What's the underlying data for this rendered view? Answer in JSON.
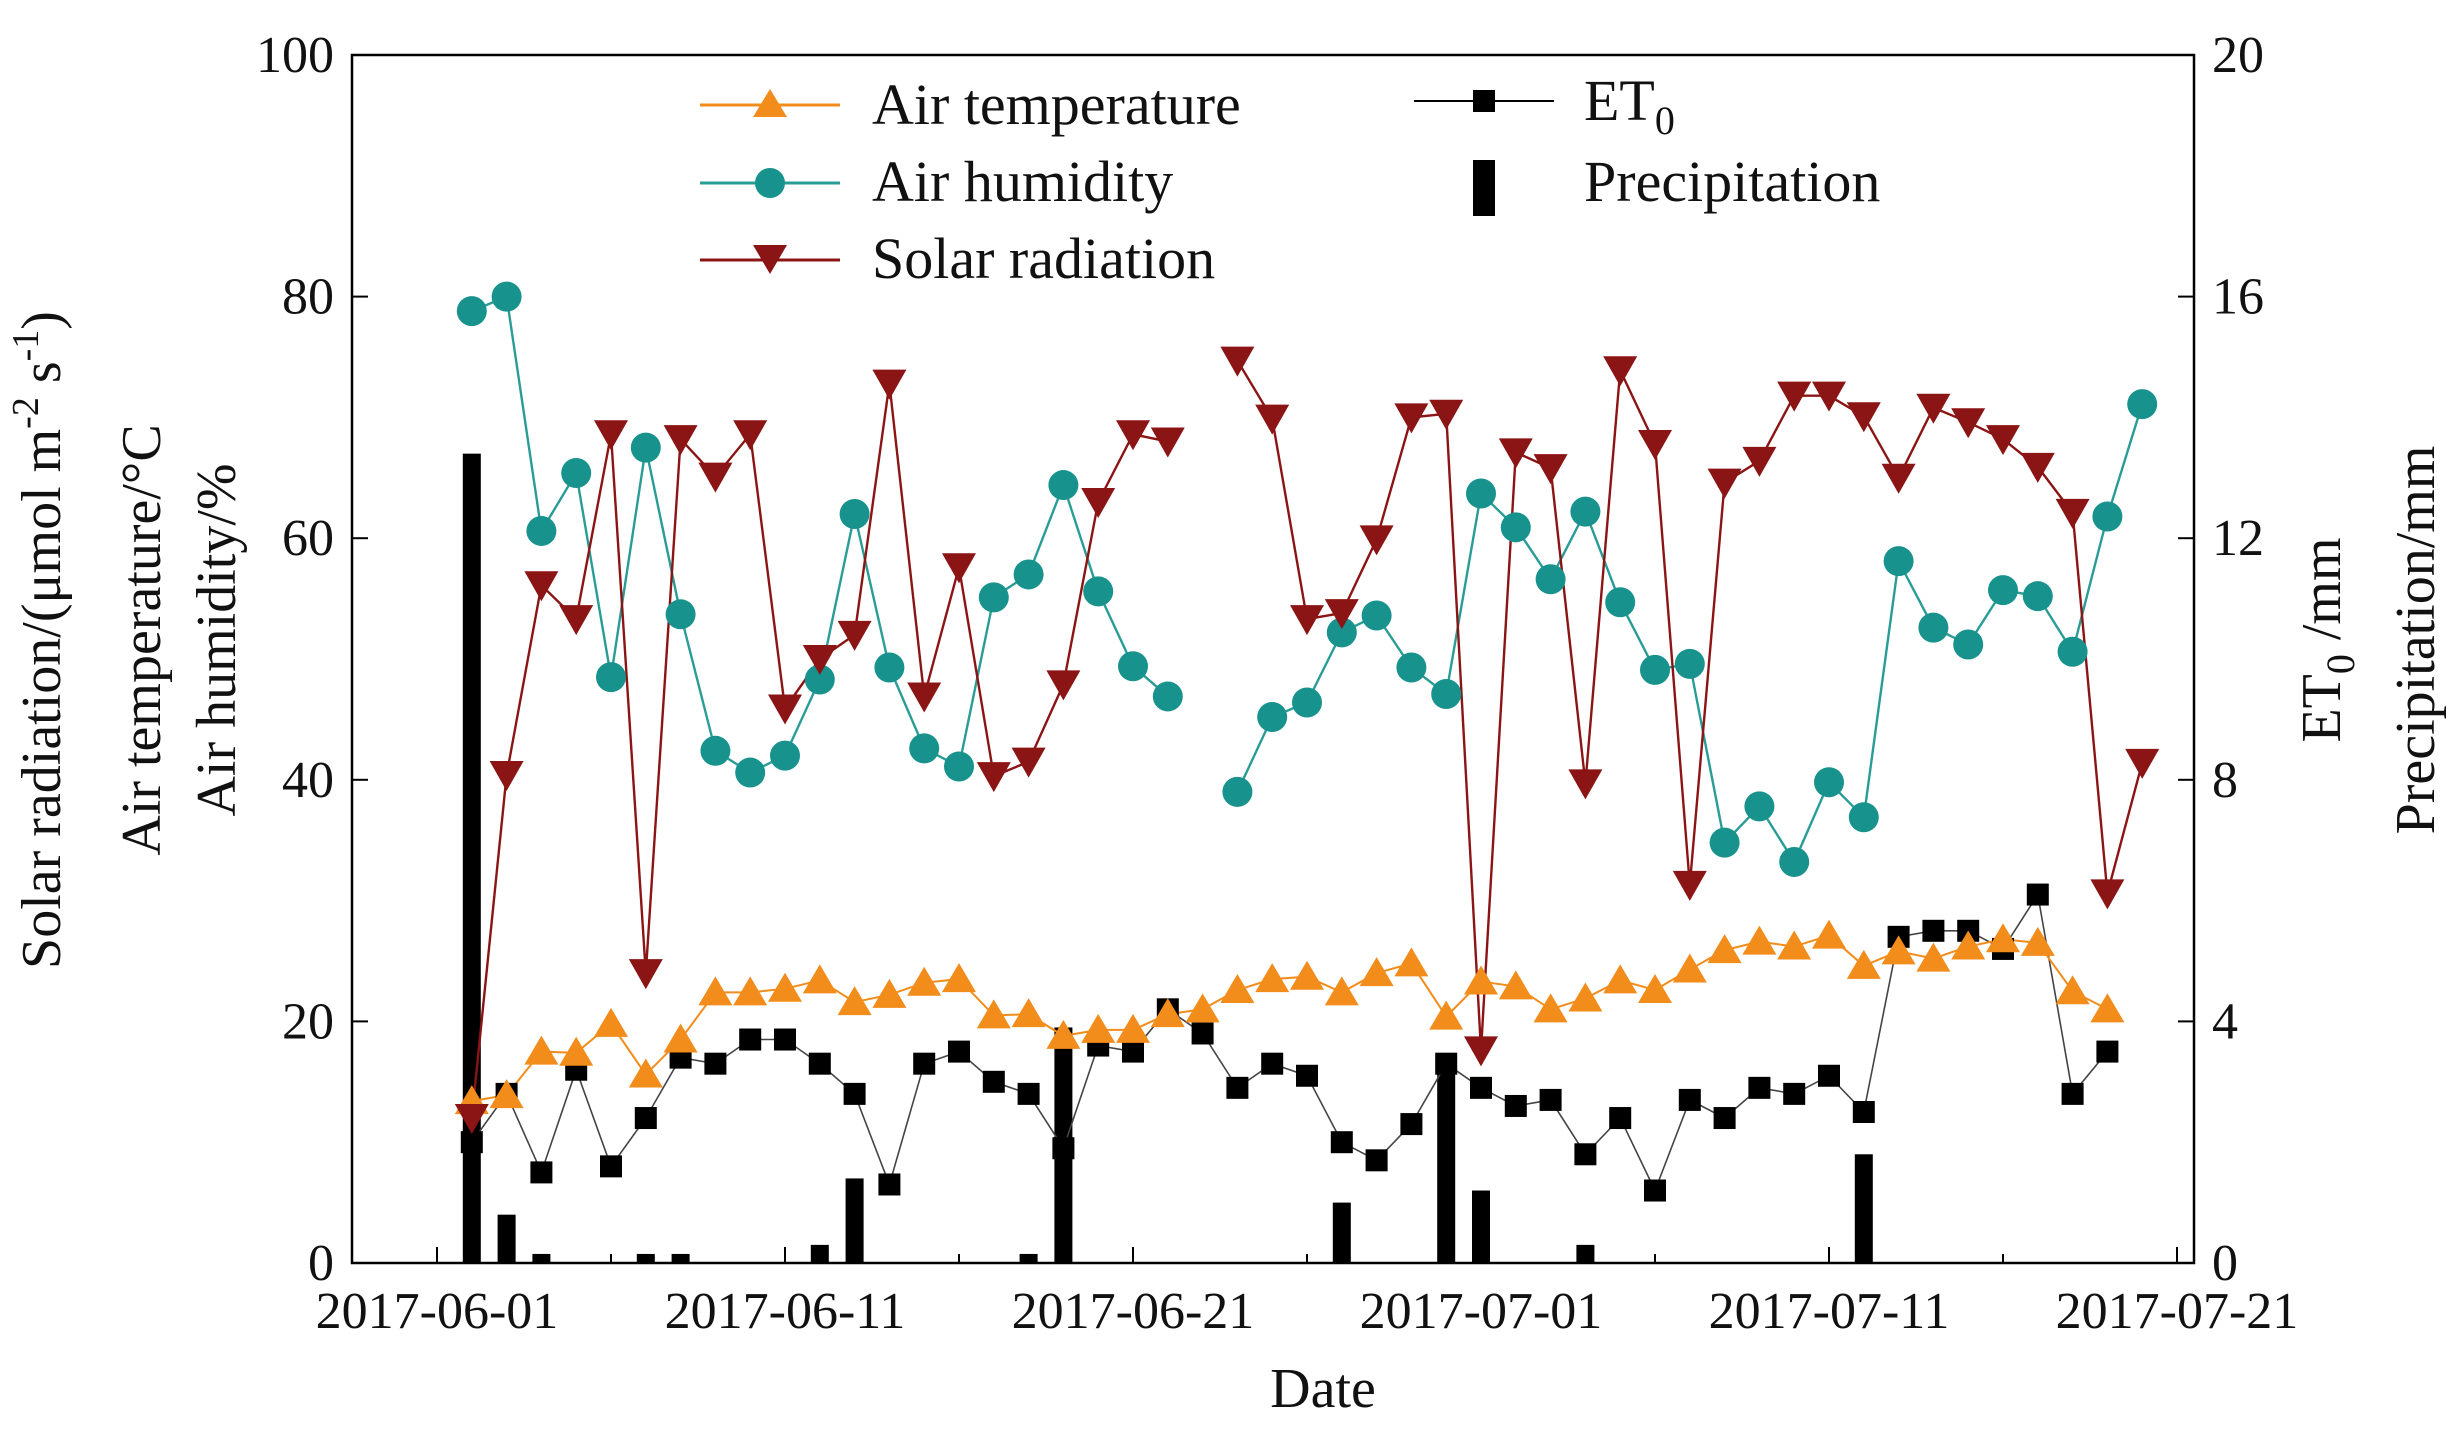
{
  "chart_data": {
    "type": "line",
    "title": "",
    "xlabel": "Date",
    "ylabel_left": [
      "Solar radiation/(μmol m⁻² s⁻¹)",
      "Air temperature/°C",
      "Air humidity/%"
    ],
    "ylabel_right": [
      "ET₀ /mm",
      "Precipitation/mm"
    ],
    "ylim_left": [
      0,
      100
    ],
    "ylim_right": [
      0,
      20
    ],
    "x_start": "2017-06-02",
    "x_ticks": [
      "2017-06-01",
      "2017-06-11",
      "2017-06-21",
      "2017-07-01",
      "2017-07-11",
      "2017-07-21"
    ],
    "y_left_ticks": [
      "0",
      "20",
      "40",
      "60",
      "80",
      "100"
    ],
    "y_right_ticks": [
      "0",
      "4",
      "8",
      "12",
      "16",
      "20"
    ],
    "legend": {
      "air_temperature": "Air temperature",
      "air_humidity": "Air humidity",
      "solar_radiation": "Solar radiation",
      "et0": "ET",
      "et0_sub": "0",
      "precipitation": "Precipitation"
    },
    "colors": {
      "air_temperature": "#F28C1B",
      "air_humidity": "#18928C",
      "humidity_line": "#2A9C96",
      "solar_radiation": "#8B1414",
      "et0": "#000000",
      "precipitation": "#000000"
    },
    "series": [
      {
        "name": "Air temperature",
        "axis": "left",
        "values": [
          13.4,
          13.9,
          17.5,
          17.4,
          19.8,
          15.6,
          18.5,
          22.4,
          22.4,
          22.7,
          23.4,
          21.6,
          22.2,
          23.2,
          23.5,
          20.5,
          20.6,
          18.8,
          19.3,
          19.3,
          20.6,
          21.0,
          22.6,
          23.5,
          23.7,
          22.4,
          24.0,
          24.8,
          20.4,
          23.3,
          22.9,
          21.0,
          21.9,
          23.4,
          22.6,
          24.3,
          25.9,
          26.6,
          26.2,
          27.1,
          24.6,
          25.8,
          25.2,
          26.2,
          26.8,
          26.5,
          22.5,
          21.0
        ]
      },
      {
        "name": "Air humidity",
        "axis": "left",
        "values": [
          78.8,
          80.0,
          60.6,
          65.4,
          48.5,
          67.5,
          53.7,
          42.4,
          40.6,
          42.0,
          48.3,
          62.0,
          49.3,
          42.6,
          41.1,
          55.1,
          57.0,
          64.4,
          55.6,
          49.4,
          46.9,
          null,
          39.0,
          45.2,
          46.4,
          52.2,
          53.6,
          49.3,
          47.1,
          63.7,
          60.9,
          56.6,
          62.2,
          54.7,
          49.1,
          49.6,
          34.8,
          37.8,
          33.2,
          39.8,
          36.9,
          58.1,
          52.6,
          51.2,
          55.7,
          55.2,
          50.6,
          61.8,
          71.1
        ]
      },
      {
        "name": "Solar radiation",
        "axis": "left",
        "values": [
          12.0,
          40.4,
          56.1,
          53.3,
          68.6,
          24.0,
          68.2,
          65.1,
          68.6,
          45.9,
          50.0,
          52.0,
          72.8,
          46.9,
          57.6,
          40.3,
          41.5,
          47.9,
          63.0,
          68.6,
          68.0,
          null,
          74.7,
          69.9,
          53.3,
          53.8,
          59.9,
          70.0,
          70.3,
          17.6,
          67.1,
          65.8,
          39.7,
          73.9,
          67.8,
          31.3,
          64.6,
          66.4,
          71.8,
          71.8,
          70.1,
          65.0,
          70.8,
          69.6,
          68.2,
          65.9,
          62.1,
          30.6,
          41.4
        ]
      },
      {
        "name": "ET0",
        "axis": "right",
        "values": [
          2.0,
          2.8,
          1.5,
          3.2,
          1.6,
          2.4,
          3.4,
          3.3,
          3.7,
          3.7,
          3.3,
          2.8,
          1.3,
          3.3,
          3.5,
          3.0,
          2.8,
          1.9,
          3.6,
          3.5,
          4.2,
          3.8,
          2.9,
          3.3,
          3.1,
          2.0,
          1.7,
          2.3,
          3.3,
          2.9,
          2.6,
          2.7,
          1.8,
          2.4,
          1.2,
          2.7,
          2.4,
          2.9,
          2.8,
          3.1,
          2.5,
          5.4,
          5.5,
          5.5,
          5.2,
          6.1,
          2.8,
          3.5
        ]
      },
      {
        "name": "Precipitation",
        "axis": "right",
        "type": "bar",
        "values": [
          13.4,
          0.8,
          0.15,
          0,
          0,
          0.15,
          0.15,
          0,
          0,
          0,
          0.3,
          1.4,
          0,
          0,
          0,
          0,
          0.15,
          3.9,
          0,
          0,
          0,
          0,
          0,
          0,
          0,
          1.0,
          0,
          0,
          3.4,
          1.2,
          0,
          0,
          0.3,
          0,
          0,
          0,
          0,
          0,
          0,
          0,
          1.8,
          0,
          0,
          0,
          0,
          0,
          0,
          0
        ]
      }
    ]
  }
}
